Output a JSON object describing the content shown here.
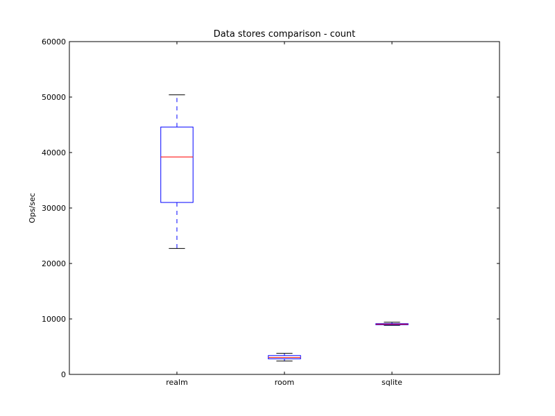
{
  "chart_data": {
    "type": "box",
    "title": "Data stores comparison - count",
    "xlabel": "",
    "ylabel": "Ops/sec",
    "ylim": [
      0,
      60000
    ],
    "yticks": [
      0,
      10000,
      20000,
      30000,
      40000,
      50000,
      60000
    ],
    "ytick_labels": [
      "0",
      "10000",
      "20000",
      "30000",
      "40000",
      "50000",
      "60000"
    ],
    "categories": [
      "realm",
      "room",
      "sqlite"
    ],
    "boxes": [
      {
        "category": "realm",
        "whisker_low": 22700,
        "q1": 31000,
        "median": 39200,
        "q3": 44600,
        "whisker_high": 50400
      },
      {
        "category": "room",
        "whisker_low": 2400,
        "q1": 2800,
        "median": 3050,
        "q3": 3400,
        "whisker_high": 3800
      },
      {
        "category": "sqlite",
        "whisker_low": 8850,
        "q1": 8950,
        "median": 9050,
        "q3": 9150,
        "whisker_high": 9400
      }
    ],
    "grid": false,
    "colors": {
      "box": "#0000ff",
      "median": "#ff0000",
      "whisker": "#0000ff",
      "cap": "#000000",
      "axes": "#000000"
    }
  }
}
